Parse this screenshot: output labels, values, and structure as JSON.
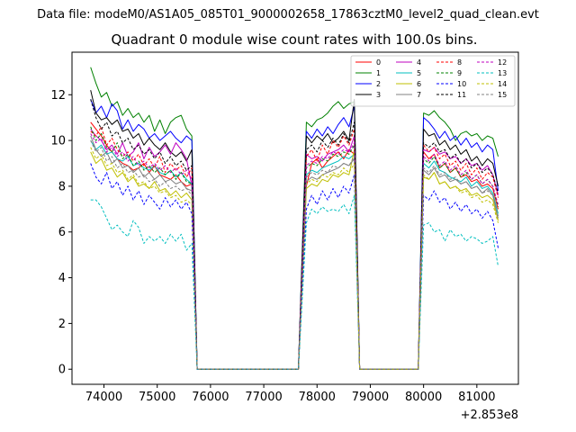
{
  "suptitle": "Data file: modeM0/AS1A05_085T01_9000002658_17863cztM0_level2_quad_clean.evt",
  "chart_data": {
    "type": "line",
    "title": "Quadrant 0 module wise count rates with 100.0s bins.",
    "xlabel": "",
    "ylabel": "",
    "x_offset_label": "+2.853e8",
    "xlim": [
      73400,
      81780
    ],
    "ylim": [
      -0.66,
      13.86
    ],
    "x_ticks": [
      74000,
      75000,
      76000,
      77000,
      78000,
      79000,
      80000,
      81000
    ],
    "x_tick_labels": [
      "74000",
      "75000",
      "76000",
      "77000",
      "78000",
      "79000",
      "80000",
      "81000"
    ],
    "y_ticks": [
      0,
      2,
      4,
      6,
      8,
      10,
      12
    ],
    "y_tick_labels": [
      "0",
      "2",
      "4",
      "6",
      "8",
      "10",
      "12"
    ],
    "legend_location": "upper right",
    "segments": [
      {
        "x_start": 73750,
        "x_end": 75650,
        "step": 100
      },
      {
        "x_start": 77800,
        "x_end": 78700,
        "step": 100
      },
      {
        "x_start": 80000,
        "x_end": 81400,
        "step": 100
      }
    ],
    "gaps": [
      [
        75750,
        77700
      ],
      [
        78800,
        79900
      ]
    ],
    "series": [
      {
        "name": "0",
        "color": "#ff0000",
        "dash": "solid",
        "seg_values": [
          [
            10.8,
            10.5,
            10.2,
            9.8,
            9.5,
            9.2,
            9.0,
            8.9,
            8.7,
            8.8,
            9.0,
            8.6,
            8.9,
            8.5,
            8.4,
            8.3,
            8.5,
            8.2,
            8.0,
            8.1
          ],
          [
            8.0,
            9.0,
            9.2,
            8.8,
            9.1,
            9.3,
            9.5,
            9.2,
            9.6,
            9.4
          ],
          [
            9.5,
            9.2,
            9.4,
            8.8,
            9.0,
            8.6,
            8.8,
            8.4,
            8.5,
            8.2,
            8.3,
            8.0,
            8.1,
            7.9,
            7.0
          ]
        ]
      },
      {
        "name": "1",
        "color": "#008000",
        "dash": "solid",
        "seg_values": [
          [
            13.2,
            12.5,
            11.9,
            12.1,
            11.5,
            11.7,
            11.1,
            11.4,
            11.0,
            11.2,
            10.8,
            11.1,
            10.4,
            10.9,
            10.3,
            10.8,
            11.0,
            11.1,
            10.5,
            10.2
          ],
          [
            10.8,
            10.6,
            10.9,
            11.0,
            11.2,
            11.5,
            11.7,
            11.4,
            11.6,
            11.7
          ],
          [
            11.2,
            11.1,
            11.3,
            11.0,
            10.8,
            10.5,
            10.0,
            10.3,
            10.4,
            10.2,
            10.3,
            10.0,
            10.2,
            10.1,
            9.3
          ]
        ]
      },
      {
        "name": "2",
        "color": "#0000ff",
        "dash": "solid",
        "seg_values": [
          [
            11.8,
            11.2,
            11.5,
            11.0,
            11.6,
            11.3,
            10.5,
            10.9,
            10.4,
            10.7,
            10.5,
            10.1,
            10.3,
            10.0,
            10.2,
            10.4,
            10.1,
            9.9,
            10.2,
            10.0
          ],
          [
            10.4,
            10.1,
            10.5,
            10.2,
            10.6,
            10.3,
            10.7,
            11.0,
            10.6,
            11.5
          ],
          [
            11.0,
            10.8,
            10.5,
            10.1,
            10.4,
            10.0,
            10.2,
            9.8,
            10.1,
            9.7,
            9.9,
            9.5,
            9.8,
            9.6,
            7.8
          ]
        ]
      },
      {
        "name": "3",
        "color": "#000000",
        "dash": "solid",
        "seg_values": [
          [
            12.2,
            11.2,
            10.9,
            11.0,
            10.7,
            10.9,
            10.4,
            10.5,
            10.1,
            10.3,
            9.8,
            10.1,
            9.8,
            9.6,
            9.9,
            9.5,
            9.3,
            9.5,
            9.1,
            9.6
          ],
          [
            10.2,
            9.9,
            10.2,
            10.0,
            10.3,
            9.9,
            10.1,
            10.4,
            10.0,
            11.8
          ],
          [
            10.5,
            10.2,
            10.3,
            9.8,
            10.0,
            9.6,
            9.8,
            9.4,
            9.6,
            9.1,
            9.3,
            8.9,
            9.2,
            9.0,
            8.0
          ]
        ]
      },
      {
        "name": "4",
        "color": "#bf00bf",
        "dash": "solid",
        "seg_values": [
          [
            10.5,
            10.2,
            10.0,
            9.6,
            9.8,
            9.4,
            9.9,
            9.3,
            9.5,
            9.9,
            9.2,
            9.7,
            9.3,
            9.5,
            9.8,
            9.4,
            9.9,
            9.6,
            9.2,
            8.0
          ],
          [
            9.4,
            9.2,
            9.3,
            9.1,
            9.4,
            9.5,
            9.6,
            9.8,
            9.5,
            10.2
          ],
          [
            9.6,
            9.5,
            9.7,
            9.4,
            9.5,
            9.2,
            9.3,
            9.0,
            9.2,
            8.9,
            9.0,
            8.7,
            8.9,
            8.5,
            7.6
          ]
        ]
      },
      {
        "name": "5",
        "color": "#00bfbf",
        "dash": "solid",
        "seg_values": [
          [
            10.0,
            9.6,
            9.8,
            9.4,
            9.5,
            9.2,
            9.1,
            9.3,
            8.9,
            9.0,
            8.8,
            8.7,
            8.9,
            8.6,
            8.5,
            8.7,
            8.4,
            8.6,
            8.3,
            8.1
          ],
          [
            8.5,
            8.7,
            8.6,
            8.8,
            8.9,
            9.0,
            9.1,
            9.3,
            9.2,
            9.4
          ],
          [
            9.0,
            8.8,
            9.1,
            8.7,
            8.6,
            8.4,
            8.3,
            8.2,
            8.4,
            8.0,
            8.2,
            7.9,
            8.0,
            7.7,
            6.8
          ]
        ]
      },
      {
        "name": "6",
        "color": "#bfbf00",
        "dash": "solid",
        "seg_values": [
          [
            9.5,
            9.0,
            9.2,
            8.7,
            8.8,
            8.4,
            8.6,
            8.2,
            8.4,
            8.0,
            8.1,
            7.9,
            8.2,
            7.8,
            7.9,
            7.6,
            7.8,
            7.5,
            7.7,
            7.4
          ],
          [
            7.9,
            8.1,
            8.0,
            8.3,
            8.2,
            8.5,
            8.4,
            8.6,
            8.5,
            9.6
          ],
          [
            8.4,
            8.3,
            8.6,
            8.1,
            8.2,
            7.9,
            8.0,
            7.8,
            7.9,
            7.6,
            7.7,
            7.5,
            7.6,
            7.4,
            6.5
          ]
        ]
      },
      {
        "name": "7",
        "color": "#808080",
        "dash": "solid",
        "seg_values": [
          [
            10.2,
            9.6,
            9.3,
            9.5,
            9.0,
            9.2,
            8.8,
            8.9,
            8.6,
            8.8,
            8.4,
            8.6,
            8.3,
            8.5,
            8.2,
            8.3,
            8.1,
            8.2,
            7.9,
            7.8
          ],
          [
            8.2,
            8.4,
            8.3,
            8.5,
            8.6,
            8.7,
            8.8,
            9.0,
            8.9,
            9.2
          ],
          [
            8.7,
            8.5,
            8.8,
            8.4,
            8.5,
            8.2,
            8.3,
            8.1,
            8.2,
            7.9,
            8.0,
            7.7,
            7.9,
            7.6,
            6.6
          ]
        ]
      },
      {
        "name": "8",
        "color": "#ff0000",
        "dash": "dashed",
        "seg_values": [
          [
            10.4,
            10.2,
            10.6,
            9.8,
            10.1,
            9.6,
            9.3,
            9.5,
            9.1,
            9.4,
            8.9,
            9.2,
            8.8,
            9.3,
            8.6,
            9.0,
            8.7,
            8.9,
            8.4,
            8.8
          ],
          [
            9.3,
            9.6,
            9.1,
            9.8,
            9.4,
            10.0,
            9.7,
            10.2,
            9.8,
            10.5
          ],
          [
            9.8,
            9.5,
            9.7,
            9.2,
            9.4,
            8.9,
            9.1,
            8.7,
            9.0,
            8.5,
            8.8,
            8.3,
            8.6,
            8.4,
            7.5
          ]
        ]
      },
      {
        "name": "9",
        "color": "#008000",
        "dash": "dashed",
        "seg_values": [
          [
            10.6,
            10.0,
            10.3,
            9.7,
            9.5,
            9.9,
            9.2,
            9.4,
            8.9,
            9.1,
            8.7,
            8.9,
            8.6,
            8.8,
            8.5,
            8.7,
            8.3,
            8.6,
            8.2,
            8.1
          ],
          [
            8.8,
            9.0,
            8.9,
            9.2,
            9.1,
            9.4,
            9.3,
            9.5,
            9.4,
            9.8
          ],
          [
            9.2,
            9.0,
            9.3,
            8.8,
            9.0,
            8.6,
            8.8,
            8.4,
            8.6,
            8.3,
            8.5,
            8.1,
            8.3,
            8.0,
            7.1
          ]
        ]
      },
      {
        "name": "10",
        "color": "#0000ff",
        "dash": "dashed",
        "seg_values": [
          [
            9.0,
            8.4,
            8.1,
            8.6,
            7.9,
            8.2,
            7.6,
            8.0,
            7.4,
            7.8,
            7.2,
            7.6,
            7.3,
            7.0,
            7.5,
            7.1,
            7.4,
            7.0,
            7.3,
            6.8
          ],
          [
            7.0,
            7.6,
            7.2,
            7.8,
            7.4,
            7.9,
            7.5,
            8.0,
            7.7,
            8.5
          ],
          [
            7.6,
            7.4,
            7.8,
            7.3,
            7.5,
            7.0,
            7.3,
            6.9,
            7.2,
            6.8,
            7.0,
            6.6,
            6.9,
            6.5,
            5.3
          ]
        ]
      },
      {
        "name": "11",
        "color": "#000000",
        "dash": "dashed",
        "seg_values": [
          [
            11.8,
            11.0,
            10.5,
            10.8,
            10.2,
            10.4,
            9.9,
            10.1,
            9.6,
            9.8,
            9.4,
            9.6,
            9.2,
            9.5,
            9.0,
            9.3,
            8.9,
            9.1,
            8.7,
            8.9
          ],
          [
            9.6,
            9.8,
            9.5,
            10.0,
            9.7,
            10.1,
            9.8,
            10.3,
            9.9,
            10.8
          ],
          [
            9.9,
            9.7,
            9.9,
            9.5,
            9.6,
            9.2,
            9.4,
            9.0,
            9.2,
            8.8,
            9.0,
            8.6,
            8.8,
            8.5,
            7.7
          ]
        ]
      },
      {
        "name": "12",
        "color": "#bf00bf",
        "dash": "dashed",
        "seg_values": [
          [
            10.3,
            9.9,
            10.1,
            9.5,
            9.7,
            9.3,
            9.5,
            9.1,
            9.3,
            8.9,
            9.1,
            8.8,
            9.0,
            8.7,
            8.9,
            8.6,
            8.8,
            8.5,
            8.7,
            8.3
          ],
          [
            8.9,
            9.1,
            9.0,
            9.3,
            9.2,
            9.5,
            9.4,
            9.6,
            9.5,
            9.9
          ],
          [
            9.3,
            9.1,
            9.4,
            8.9,
            9.1,
            8.7,
            8.9,
            8.5,
            8.7,
            8.3,
            8.5,
            8.1,
            8.3,
            8.0,
            7.2
          ]
        ]
      },
      {
        "name": "13",
        "color": "#00bfbf",
        "dash": "dashed",
        "seg_values": [
          [
            7.4,
            7.4,
            7.1,
            6.6,
            6.1,
            6.3,
            6.0,
            5.8,
            6.5,
            6.2,
            5.5,
            5.8,
            5.6,
            5.8,
            5.5,
            5.9,
            5.6,
            5.9,
            5.2,
            5.5
          ],
          [
            6.4,
            7.0,
            6.8,
            7.1,
            6.9,
            7.0,
            6.9,
            7.2,
            6.8,
            7.6
          ],
          [
            6.3,
            6.4,
            6.0,
            6.1,
            5.6,
            6.1,
            5.8,
            5.9,
            5.6,
            5.8,
            5.7,
            5.5,
            5.6,
            5.8,
            4.5
          ]
        ]
      },
      {
        "name": "14",
        "color": "#bfbf00",
        "dash": "dashed",
        "seg_values": [
          [
            9.7,
            9.2,
            9.4,
            8.9,
            9.0,
            8.6,
            8.7,
            8.3,
            8.5,
            8.1,
            8.2,
            7.9,
            8.0,
            7.7,
            7.8,
            7.5,
            7.6,
            7.3,
            7.4,
            7.2
          ],
          [
            8.1,
            8.3,
            8.2,
            8.5,
            8.4,
            8.6,
            8.5,
            8.8,
            8.6,
            9.0
          ],
          [
            8.5,
            8.3,
            8.6,
            8.1,
            8.2,
            7.9,
            8.0,
            7.7,
            7.8,
            7.5,
            7.6,
            7.3,
            7.4,
            7.2,
            6.4
          ]
        ]
      },
      {
        "name": "15",
        "color": "#808080",
        "dash": "dashed",
        "seg_values": [
          [
            10.0,
            9.5,
            9.7,
            9.1,
            9.3,
            8.8,
            9.0,
            8.6,
            8.7,
            8.4,
            8.5,
            8.2,
            8.3,
            8.0,
            8.2,
            7.9,
            8.0,
            7.8,
            7.9,
            7.6
          ],
          [
            8.4,
            8.6,
            8.5,
            8.7,
            8.6,
            8.9,
            8.8,
            9.0,
            8.9,
            9.3
          ],
          [
            8.8,
            8.6,
            8.9,
            8.5,
            8.6,
            8.3,
            8.4,
            8.1,
            8.2,
            7.9,
            8.0,
            7.7,
            7.8,
            7.6,
            6.7
          ]
        ]
      }
    ]
  }
}
